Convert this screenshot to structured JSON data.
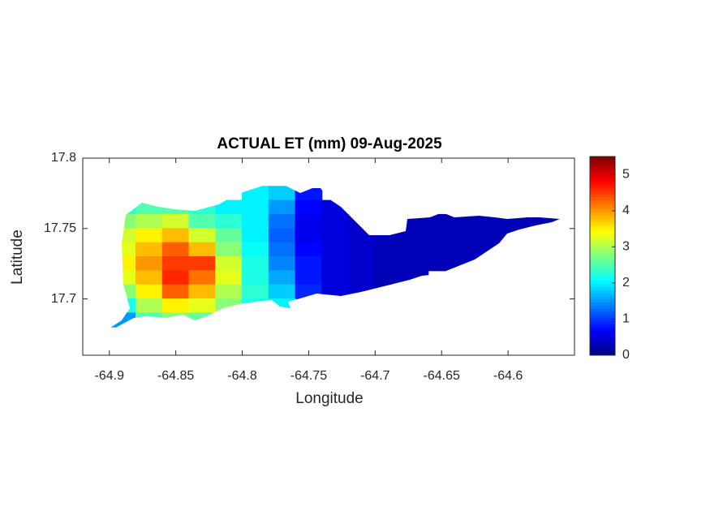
{
  "chart_data": {
    "type": "heatmap",
    "title": "ACTUAL ET (mm) 09-Aug-2025",
    "xlabel": "Longitude",
    "ylabel": "Latitude",
    "x": [
      -64.89,
      -64.87,
      -64.85,
      -64.83,
      -64.81,
      -64.79,
      -64.77,
      -64.75,
      -64.73,
      -64.71,
      -64.69,
      -64.67,
      -64.65,
      -64.63,
      -64.61,
      -64.59,
      -64.57
    ],
    "y": [
      17.775,
      17.765,
      17.755,
      17.745,
      17.735,
      17.725,
      17.715,
      17.705,
      17.695,
      17.685
    ],
    "values": [
      [
        null,
        null,
        null,
        null,
        null,
        2.0,
        1.8,
        0.8,
        null,
        null,
        null,
        null,
        null,
        null,
        null,
        null,
        null
      ],
      [
        2.3,
        2.5,
        2.5,
        2.3,
        2.0,
        2.0,
        1.5,
        0.7,
        0.5,
        null,
        null,
        null,
        null,
        null,
        null,
        null,
        null
      ],
      [
        2.8,
        3.0,
        3.2,
        2.5,
        2.3,
        2.0,
        1.3,
        0.6,
        0.5,
        0.4,
        null,
        0.3,
        0.3,
        0.3,
        0.3,
        0.3,
        0.3
      ],
      [
        3.2,
        3.5,
        3.8,
        3.2,
        2.6,
        2.0,
        1.2,
        0.6,
        0.5,
        0.4,
        0.3,
        0.3,
        0.3,
        0.3,
        0.3,
        0.3,
        null
      ],
      [
        3.3,
        3.8,
        4.3,
        3.8,
        2.8,
        2.1,
        1.3,
        0.7,
        0.5,
        0.4,
        0.3,
        0.3,
        0.3,
        0.3,
        0.3,
        null,
        null
      ],
      [
        3.5,
        4.0,
        4.5,
        4.5,
        3.2,
        2.2,
        1.4,
        0.8,
        0.5,
        0.4,
        0.3,
        0.3,
        0.3,
        0.3,
        null,
        null,
        null
      ],
      [
        3.3,
        3.8,
        4.6,
        4.2,
        3.3,
        2.2,
        1.6,
        0.8,
        0.5,
        0.4,
        0.3,
        0.3,
        null,
        null,
        null,
        null,
        null
      ],
      [
        2.8,
        3.5,
        4.3,
        3.8,
        3.0,
        2.3,
        1.8,
        0.9,
        0.5,
        0.4,
        0.3,
        null,
        null,
        null,
        null,
        null,
        null
      ],
      [
        2.2,
        3.0,
        3.5,
        3.3,
        2.8,
        2.2,
        2.0,
        null,
        null,
        null,
        null,
        null,
        null,
        null,
        null,
        null,
        null
      ],
      [
        1.5,
        2.5,
        2.8,
        2.6,
        2.3,
        null,
        null,
        null,
        null,
        null,
        null,
        null,
        null,
        null,
        null,
        null,
        null
      ]
    ],
    "colormap": "jet",
    "xlim": [
      -64.92,
      -64.55
    ],
    "xticks": [
      -64.9,
      -64.85,
      -64.8,
      -64.75,
      -64.7,
      -64.65,
      -64.6
    ],
    "ylim": [
      17.66,
      17.8
    ],
    "yticks": [
      17.7,
      17.75,
      17.8
    ],
    "clim": [
      0,
      5.5
    ],
    "cticks": [
      0,
      1,
      2,
      3,
      4,
      5
    ]
  }
}
